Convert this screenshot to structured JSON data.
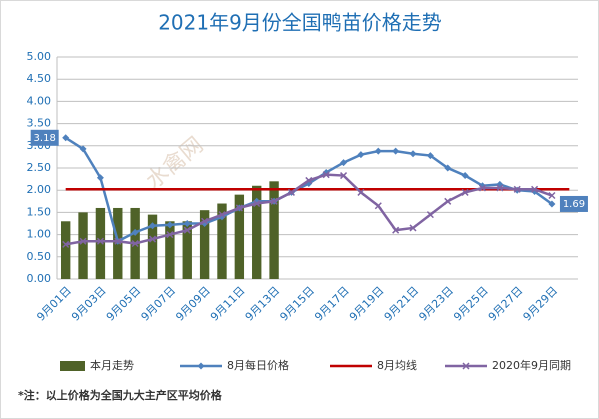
{
  "chart_data": {
    "type": "bar",
    "title": "2021年9月份全国鸭苗价格走势",
    "watermark": "水禽网",
    "note": "*注：以上价格为全国九大主产区平均价格",
    "categories": [
      "9月01日",
      null,
      "9月03日",
      null,
      "9月05日",
      null,
      "9月07日",
      null,
      "9月09日",
      null,
      "9月11日",
      null,
      "9月13日",
      null,
      "9月15日",
      null,
      "9月17日",
      null,
      "9月19日",
      null,
      "9月21日",
      null,
      "9月23日",
      null,
      "9月25日",
      null,
      "9月27日",
      null,
      "9月29日",
      null
    ],
    "ylim": [
      0,
      5
    ],
    "yticks": [
      {
        "value": 0,
        "label": "0.00"
      },
      {
        "value": 0.5,
        "label": "0.50"
      },
      {
        "value": 1,
        "label": "1.00"
      },
      {
        "value": 1.5,
        "label": "1.50"
      },
      {
        "value": 2,
        "label": "2.00"
      },
      {
        "value": 2.5,
        "label": "2.50"
      },
      {
        "value": 3,
        "label": "3.00"
      },
      {
        "value": 3.5,
        "label": "3.50"
      },
      {
        "value": 4,
        "label": "4.00"
      },
      {
        "value": 4.5,
        "label": "4.50"
      },
      {
        "value": 5,
        "label": "5.00"
      }
    ],
    "grid": true,
    "series": [
      {
        "name": "本月走势",
        "type": "bar",
        "color": "#4f6228",
        "values": [
          1.3,
          1.5,
          1.6,
          1.6,
          1.6,
          1.45,
          1.3,
          1.3,
          1.55,
          1.7,
          1.9,
          2.1,
          2.2,
          null,
          null,
          null,
          null,
          null,
          null,
          null,
          null,
          null,
          null,
          null,
          null,
          null,
          null,
          null,
          null,
          null
        ]
      },
      {
        "name": "8月每日价格",
        "type": "line",
        "marker": "diamond",
        "color": "#4f81bd",
        "values": [
          3.18,
          2.93,
          2.28,
          0.85,
          1.05,
          1.2,
          1.22,
          1.25,
          1.25,
          1.4,
          1.6,
          1.75,
          1.75,
          1.95,
          2.15,
          2.4,
          2.62,
          2.8,
          2.88,
          2.88,
          2.82,
          2.78,
          2.5,
          2.33,
          2.1,
          2.13,
          2.0,
          1.97,
          1.69,
          null
        ],
        "labeled": [
          0,
          28
        ]
      },
      {
        "name": "8月均线",
        "type": "line",
        "marker": "none",
        "color": "#c00000",
        "values": [
          2.02,
          2.02,
          2.02,
          2.02,
          2.02,
          2.02,
          2.02,
          2.02,
          2.02,
          2.02,
          2.02,
          2.02,
          2.02,
          2.02,
          2.02,
          2.02,
          2.02,
          2.02,
          2.02,
          2.02,
          2.02,
          2.02,
          2.02,
          2.02,
          2.02,
          2.02,
          2.02,
          2.02,
          2.02,
          2.02
        ]
      },
      {
        "name": "2020年9月同期",
        "type": "line",
        "marker": "x",
        "color": "#8064a2",
        "values": [
          0.78,
          0.85,
          0.85,
          0.85,
          0.8,
          0.9,
          1.0,
          1.1,
          1.3,
          1.45,
          1.6,
          1.7,
          1.75,
          1.95,
          2.22,
          2.35,
          2.33,
          1.95,
          1.65,
          1.1,
          1.15,
          1.45,
          1.75,
          1.95,
          2.05,
          2.05,
          2.02,
          2.02,
          1.88,
          null
        ]
      }
    ]
  }
}
